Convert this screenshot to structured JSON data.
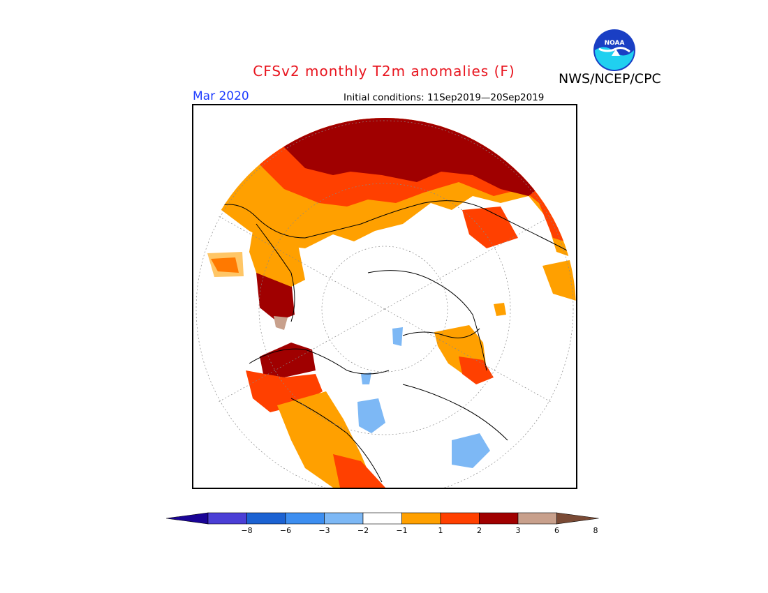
{
  "title": "CFSv2 monthly T2m anomalies (F)",
  "organization": "NWS/NCEP/CPC",
  "logo_text": "NOAA",
  "valid_month": "Mar 2020",
  "initial_conditions": "Initial conditions: 11Sep2019—20Sep2019",
  "map": {
    "projection": "polar stereographic (north pole)",
    "variable": "2 m temperature anomaly",
    "units": "F"
  },
  "legend": {
    "colors": [
      "#1a0496",
      "#4b3fd6",
      "#1c62d2",
      "#3d8ef0",
      "#7db8f5",
      "#ffffff",
      "#ffa000",
      "#ff4000",
      "#a00000",
      "#c8a08c",
      "#7a4a35"
    ],
    "tick_labels": [
      "−8",
      "−6",
      "−3",
      "−2",
      "−1",
      "1",
      "2",
      "3",
      "6",
      "8"
    ]
  },
  "colors": {
    "title": "#e8141e",
    "month": "#1e3cff",
    "warm1": "#ffa000",
    "warm2": "#ff4000",
    "warm3": "#a00000",
    "warm4": "#c8a08c",
    "cool1": "#7db8f5"
  }
}
